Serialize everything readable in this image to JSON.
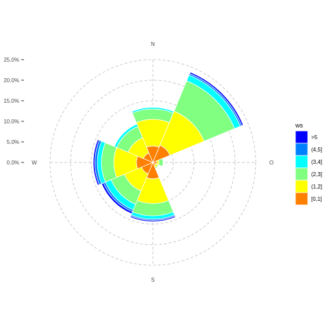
{
  "chart_data": {
    "type": "polar-stacked-bar",
    "directions": [
      "N",
      "NE",
      "E",
      "SE",
      "S",
      "SW",
      "W",
      "NW"
    ],
    "compass_labels": {
      "north": "N",
      "east": "O",
      "south": "S",
      "west": "W"
    },
    "radial_ticks": [
      "0.0%",
      "5.0%",
      "10.0%",
      "15.0%",
      "20.0%",
      "25.0%"
    ],
    "rlim": [
      0,
      25
    ],
    "grid": true,
    "legend": {
      "title": "ws",
      "position": "right"
    },
    "series": [
      {
        "name": "[0,1]",
        "color": "#FF7F00",
        "values": [
          4.0,
          4.5,
          1.0,
          0.8,
          4.0,
          3.0,
          4.0,
          2.5
        ]
      },
      {
        "name": "(1,2]",
        "color": "#FFFF00",
        "values": [
          6.5,
          9.0,
          0.5,
          0.5,
          6.0,
          4.5,
          5.5,
          4.0
        ]
      },
      {
        "name": "(2,3]",
        "color": "#80FF80",
        "values": [
          2.5,
          8.0,
          1.0,
          0.3,
          3.0,
          3.5,
          3.0,
          3.0
        ]
      },
      {
        "name": "(3,4]",
        "color": "#00FFFF",
        "values": [
          0.4,
          1.5,
          0.0,
          0.0,
          0.8,
          1.5,
          1.0,
          0.6
        ]
      },
      {
        "name": "(4,5]",
        "color": "#0080FF",
        "values": [
          0.0,
          0.4,
          0.0,
          0.0,
          0.3,
          0.5,
          0.6,
          0.0
        ]
      },
      {
        "name": ">5",
        "color": "#0000FF",
        "values": [
          0.0,
          0.4,
          0.0,
          0.0,
          0.3,
          0.5,
          0.4,
          0.0
        ]
      }
    ]
  }
}
